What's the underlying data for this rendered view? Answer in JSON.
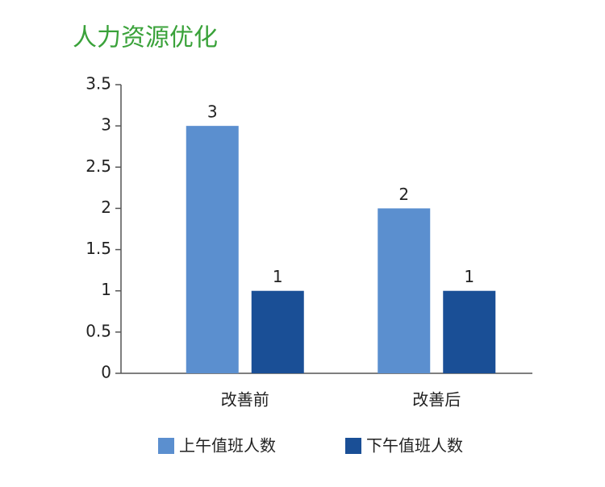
{
  "chart_data": {
    "type": "bar",
    "title": "人力资源优化",
    "categories": [
      "改善前",
      "改善后"
    ],
    "series": [
      {
        "name": "上午值班人数",
        "color": "#5b8fcf",
        "values": [
          3,
          2
        ]
      },
      {
        "name": "下午值班人数",
        "color": "#1a4f96",
        "values": [
          1,
          1
        ]
      }
    ],
    "ylim": [
      0,
      3.5
    ],
    "yticks": [
      0,
      0.5,
      1,
      1.5,
      2,
      2.5,
      3,
      3.5
    ],
    "grid": false,
    "data_labels": true,
    "legend": "bottom"
  }
}
